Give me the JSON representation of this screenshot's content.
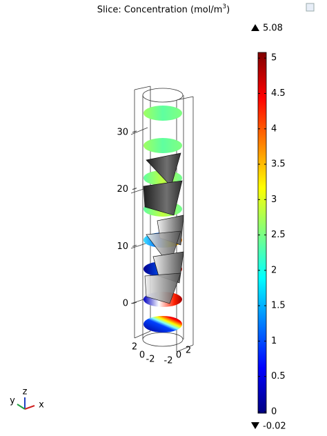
{
  "plot": {
    "title": [
      "Slice: Concentration (mol/m",
      "3",
      ")"
    ],
    "colorbar": {
      "max": 5.08,
      "min": -0.02,
      "ticks": [
        0,
        0.5,
        1,
        1.5,
        2,
        2.5,
        3,
        3.5,
        4,
        4.5,
        5
      ],
      "colormap": [
        "#00007f",
        "#0000ff",
        "#007fff",
        "#00ffff",
        "#7fff7f",
        "#ffff00",
        "#ff7f00",
        "#ff0000",
        "#7f0000"
      ]
    },
    "z_ticks": [
      0,
      10,
      20,
      30
    ],
    "y_ticks": [
      2,
      0,
      -2
    ],
    "x_ticks": [
      -2,
      0,
      2
    ],
    "triad": {
      "z": "z",
      "y": "y",
      "x": "x"
    }
  }
}
